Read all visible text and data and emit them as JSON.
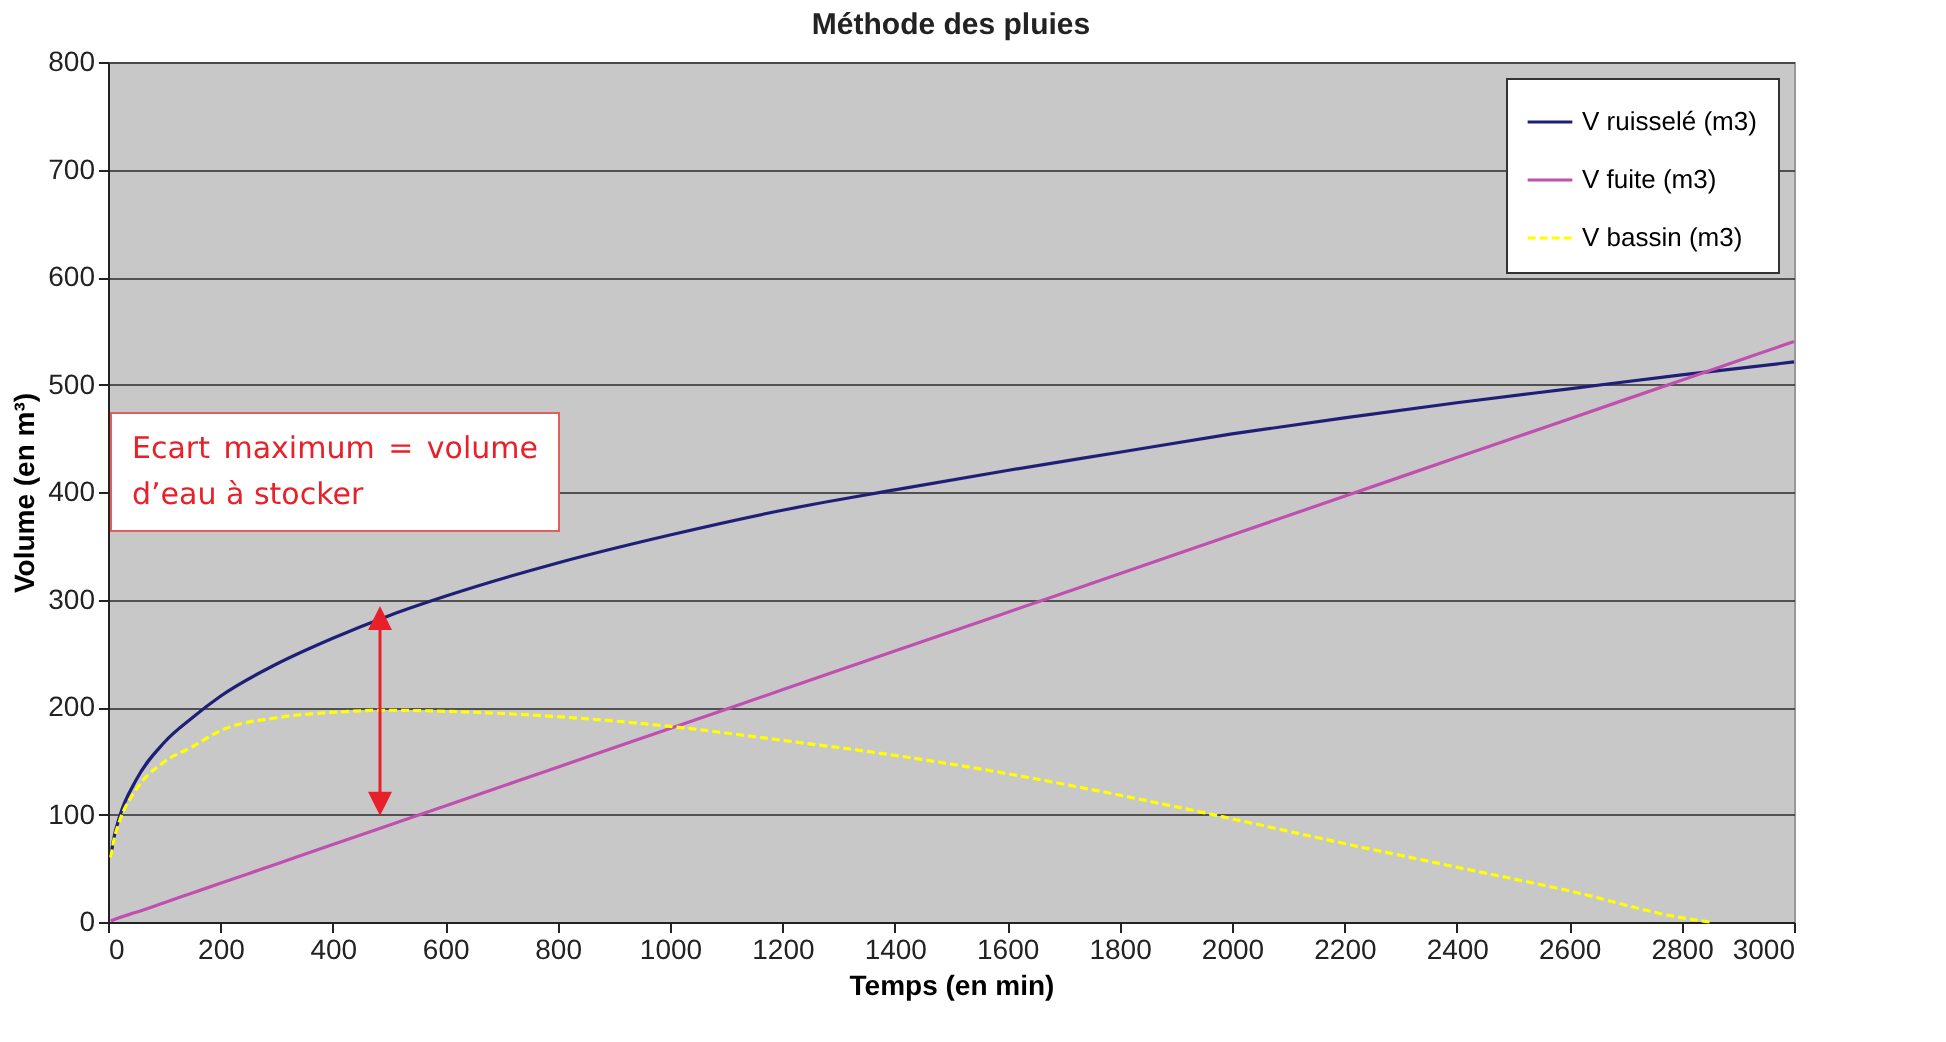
{
  "chart_data": {
    "type": "line",
    "title": "Méthode des pluies",
    "xlabel": "Temps (en min)",
    "ylabel": "Volume (en m³)",
    "x": [
      5,
      10,
      20,
      50,
      100,
      150,
      200,
      300,
      400,
      500,
      600,
      800,
      1000,
      1200,
      1400,
      1600,
      1800,
      2000,
      2200,
      2400,
      2600,
      2800,
      3000
    ],
    "series": [
      {
        "name": "V ruisselé (m3)",
        "color": "#1f1f78",
        "line_style": "solid",
        "values": [
          61,
          77,
          97,
          132,
          167,
          190,
          210,
          240,
          264,
          285,
          303,
          334,
          360,
          383,
          402,
          420,
          437,
          454,
          469,
          483,
          496,
          509,
          521
        ]
      },
      {
        "name": "V fuite (m3)",
        "color": "#c050b0",
        "line_style": "solid",
        "values": [
          1,
          2,
          4,
          9,
          18,
          27,
          36,
          54,
          72,
          90,
          108,
          144,
          180,
          216,
          252,
          288,
          324,
          360,
          396,
          432,
          468,
          504,
          540
        ]
      },
      {
        "name": "V bassin (m3)",
        "color": "#ffff00",
        "line_style": "dashed",
        "x": [
          5,
          10,
          20,
          50,
          100,
          150,
          200,
          300,
          400,
          500,
          600,
          800,
          1000,
          1200,
          1400,
          1600,
          1800,
          2000,
          2200,
          2400,
          2600,
          2800,
          2850
        ],
        "values": [
          60,
          75,
          93,
          123,
          149,
          163,
          178,
          190,
          195,
          197,
          196,
          191,
          182,
          169,
          155,
          138,
          118,
          96,
          73,
          51,
          29,
          4,
          0
        ]
      }
    ],
    "annotations": [
      "Ecart maximum = volume d’eau à stocker"
    ],
    "xlim": [
      0,
      3000
    ],
    "xticks": [
      0,
      200,
      400,
      600,
      800,
      1000,
      1200,
      1400,
      1600,
      1800,
      2000,
      2200,
      2400,
      2600,
      2800,
      3000
    ],
    "ylim": [
      0,
      800
    ],
    "yticks": [
      0,
      100,
      200,
      300,
      400,
      500,
      600,
      700,
      800
    ],
    "grid": "y",
    "legend": "top right"
  }
}
